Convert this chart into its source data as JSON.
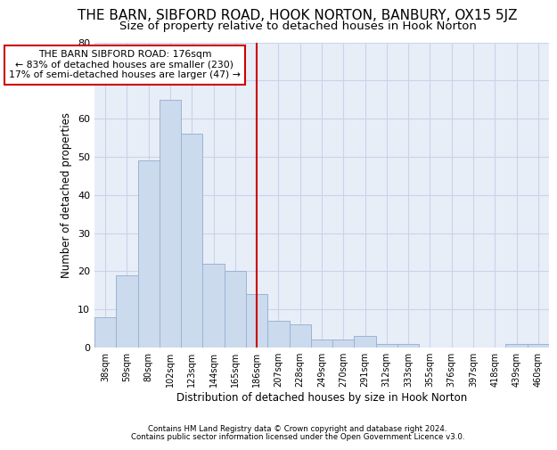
{
  "title": "THE BARN, SIBFORD ROAD, HOOK NORTON, BANBURY, OX15 5JZ",
  "subtitle": "Size of property relative to detached houses in Hook Norton",
  "xlabel": "Distribution of detached houses by size in Hook Norton",
  "ylabel_text": "Number of detached properties",
  "categories": [
    "38sqm",
    "59sqm",
    "80sqm",
    "102sqm",
    "123sqm",
    "144sqm",
    "165sqm",
    "186sqm",
    "207sqm",
    "228sqm",
    "249sqm",
    "270sqm",
    "291sqm",
    "312sqm",
    "333sqm",
    "355sqm",
    "376sqm",
    "397sqm",
    "418sqm",
    "439sqm",
    "460sqm"
  ],
  "values": [
    8,
    19,
    49,
    65,
    56,
    22,
    20,
    14,
    7,
    6,
    2,
    2,
    3,
    1,
    1,
    0,
    0,
    0,
    0,
    1,
    1
  ],
  "bar_color": "#ccdaed",
  "bar_edge_color": "#9ab4d4",
  "grid_color": "#c8d4e8",
  "marker_line_color": "#cc0000",
  "marker_bin_index": 7,
  "annotation_line1": "THE BARN SIBFORD ROAD: 176sqm",
  "annotation_line2": "← 83% of detached houses are smaller (230)",
  "annotation_line3": "17% of semi-detached houses are larger (47) →",
  "annotation_box_color": "#ffffff",
  "annotation_box_edge": "#cc0000",
  "footer1": "Contains HM Land Registry data © Crown copyright and database right 2024.",
  "footer2": "Contains public sector information licensed under the Open Government Licence v3.0.",
  "figure_bg": "#ffffff",
  "axes_bg": "#e8eef8",
  "ylim": [
    0,
    80
  ],
  "yticks": [
    0,
    10,
    20,
    30,
    40,
    50,
    60,
    70,
    80
  ],
  "title_fontsize": 11,
  "subtitle_fontsize": 9.5
}
